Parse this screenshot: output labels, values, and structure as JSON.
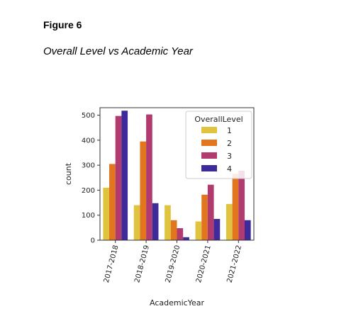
{
  "figure": {
    "label": "Figure 6",
    "caption": "Overall Level vs Academic Year"
  },
  "chart_data": {
    "type": "bar",
    "xlabel": "AcademicYear",
    "ylabel": "count",
    "categories": [
      "2017-2018",
      "2018-2019",
      "2019-2020",
      "2020-2021",
      "2021-2022"
    ],
    "yticks": [
      0,
      100,
      200,
      300,
      400,
      500
    ],
    "ylim": [
      0,
      530
    ],
    "legend": {
      "title": "OverallLevel",
      "placement": "top-right"
    },
    "grid": false,
    "series": [
      {
        "name": "1",
        "color": "#e0c43f",
        "values": [
          210,
          140,
          140,
          75,
          145
        ]
      },
      {
        "name": "2",
        "color": "#e2761e",
        "values": [
          305,
          395,
          80,
          182,
          265
        ]
      },
      {
        "name": "3",
        "color": "#b13a6e",
        "values": [
          497,
          503,
          48,
          222,
          278
        ]
      },
      {
        "name": "4",
        "color": "#3e2b9a",
        "values": [
          518,
          148,
          12,
          85,
          80
        ]
      }
    ]
  }
}
